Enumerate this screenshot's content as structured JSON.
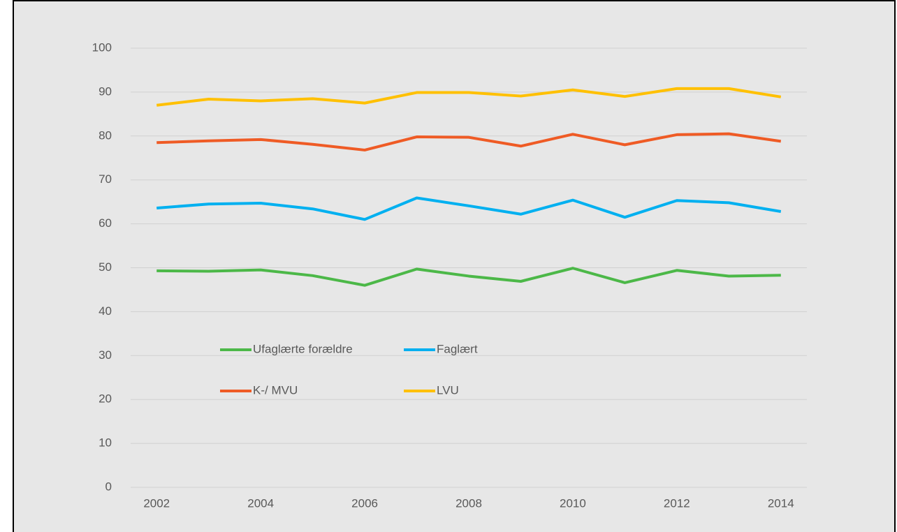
{
  "chart_data": {
    "type": "line",
    "x": [
      2002,
      2003,
      2004,
      2005,
      2006,
      2007,
      2008,
      2009,
      2010,
      2011,
      2012,
      2013,
      2014
    ],
    "xlim": [
      2001.5,
      2014.5
    ],
    "xticks": [
      2002,
      2004,
      2006,
      2008,
      2010,
      2012,
      2014
    ],
    "ylim": [
      0,
      100
    ],
    "yticks": [
      0,
      10,
      20,
      30,
      40,
      50,
      60,
      70,
      80,
      90,
      100
    ],
    "grid": true,
    "series": [
      {
        "name": "Ufaglærte forældre",
        "color": "#4cb848",
        "values": [
          49.3,
          49.2,
          49.5,
          48.2,
          46.0,
          49.7,
          48.1,
          46.9,
          49.9,
          46.6,
          49.4,
          48.1,
          48.3
        ]
      },
      {
        "name": "Faglært",
        "color": "#00b0f0",
        "values": [
          63.6,
          64.5,
          64.7,
          63.4,
          61.0,
          65.9,
          64.1,
          62.2,
          65.4,
          61.5,
          65.3,
          64.8,
          62.8
        ]
      },
      {
        "name": "K-/ MVU",
        "color": "#ef5b25",
        "values": [
          78.5,
          78.9,
          79.2,
          78.1,
          76.8,
          79.8,
          79.7,
          77.7,
          80.4,
          78.0,
          80.3,
          80.5,
          78.8
        ]
      },
      {
        "name": "LVU",
        "color": "#ffc000",
        "values": [
          87.0,
          88.4,
          88.0,
          88.5,
          87.5,
          89.9,
          89.9,
          89.1,
          90.5,
          89.0,
          90.8,
          90.8,
          88.9
        ]
      }
    ]
  }
}
